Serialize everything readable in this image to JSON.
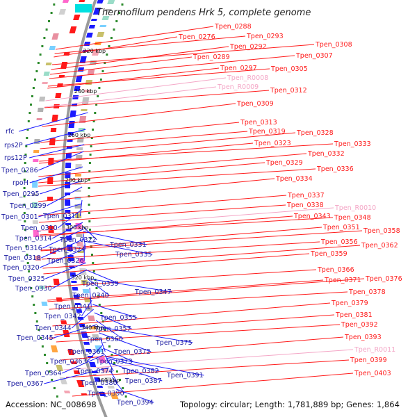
{
  "title": "Thermofilum pendens Hrk 5, complete genome",
  "footer": {
    "accession": "Accession: NC_008698",
    "summary": "Topology: circular; Length: 1,781,889 bp; Genes: 1,864"
  },
  "colors": {
    "backbone": "#9a9a9a",
    "plus_strand": "#ff1a1a",
    "minus_strand": "#1a1aff",
    "rna_label": "#f4a6c6",
    "ticks": "#2b8a2b"
  },
  "scale_marks": [
    "220 kbp",
    "240 kbp",
    "260 kbp",
    "280 kbp",
    "300 kbp",
    "320 kbp",
    "340 kbp",
    "360 kbp"
  ],
  "right_labels": [
    {
      "text": "Tpen_0288",
      "kind": "gene"
    },
    {
      "text": "Tpen_0276",
      "kind": "gene"
    },
    {
      "text": "Tpen_0293",
      "kind": "gene"
    },
    {
      "text": "Tpen_0292",
      "kind": "gene"
    },
    {
      "text": "Tpen_0308",
      "kind": "gene"
    },
    {
      "text": "Tpen_0289",
      "kind": "gene"
    },
    {
      "text": "Tpen_0307",
      "kind": "gene"
    },
    {
      "text": "Tpen_0297",
      "kind": "gene"
    },
    {
      "text": "Tpen_0305",
      "kind": "gene"
    },
    {
      "text": "Tpen_R0008",
      "kind": "rna"
    },
    {
      "text": "Tpen_R0009",
      "kind": "rna"
    },
    {
      "text": "Tpen_0312",
      "kind": "gene"
    },
    {
      "text": "Tpen_0309",
      "kind": "gene"
    },
    {
      "text": "Tpen_0313",
      "kind": "gene"
    },
    {
      "text": "Tpen_0319",
      "kind": "gene"
    },
    {
      "text": "Tpen_0328",
      "kind": "gene"
    },
    {
      "text": "Tpen_0323",
      "kind": "gene"
    },
    {
      "text": "Tpen_0333",
      "kind": "gene"
    },
    {
      "text": "Tpen_0332",
      "kind": "gene"
    },
    {
      "text": "Tpen_0329",
      "kind": "gene"
    },
    {
      "text": "Tpen_0336",
      "kind": "gene"
    },
    {
      "text": "Tpen_0334",
      "kind": "gene"
    },
    {
      "text": "Tpen_0337",
      "kind": "gene"
    },
    {
      "text": "Tpen_0338",
      "kind": "gene"
    },
    {
      "text": "Tpen_R0010",
      "kind": "rna"
    },
    {
      "text": "Tpen_0343",
      "kind": "gene"
    },
    {
      "text": "Tpen_0348",
      "kind": "gene"
    },
    {
      "text": "Tpen_0351",
      "kind": "gene"
    },
    {
      "text": "Tpen_0358",
      "kind": "gene"
    },
    {
      "text": "Tpen_0356",
      "kind": "gene"
    },
    {
      "text": "Tpen_0362",
      "kind": "gene"
    },
    {
      "text": "Tpen_0359",
      "kind": "gene"
    },
    {
      "text": "Tpen_0366",
      "kind": "gene"
    },
    {
      "text": "Tpen_0376",
      "kind": "gene"
    },
    {
      "text": "Tpen_0371",
      "kind": "gene"
    },
    {
      "text": "Tpen_0378",
      "kind": "gene"
    },
    {
      "text": "Tpen_0379",
      "kind": "gene"
    },
    {
      "text": "Tpen_0381",
      "kind": "gene"
    },
    {
      "text": "Tpen_0392",
      "kind": "gene"
    },
    {
      "text": "Tpen_0393",
      "kind": "gene"
    },
    {
      "text": "Tpen_R0011",
      "kind": "rna"
    },
    {
      "text": "Tpen_0399",
      "kind": "gene"
    },
    {
      "text": "Tpen_0403",
      "kind": "gene"
    }
  ],
  "left_labels": [
    {
      "text": "rfc"
    },
    {
      "text": "rps2P"
    },
    {
      "text": "rps12P"
    },
    {
      "text": "Tpen_0286"
    },
    {
      "text": "rpoH"
    },
    {
      "text": "Tpen_0295"
    },
    {
      "text": "Tpen_0299"
    },
    {
      "text": "Tpen_0311"
    },
    {
      "text": "Tpen_0301"
    },
    {
      "text": "Tpen_0310"
    },
    {
      "text": "Tpen_0314"
    },
    {
      "text": "Tpen_0322"
    },
    {
      "text": "Tpen_0316"
    },
    {
      "text": "Tpen_0324"
    },
    {
      "text": "Tpen_0331"
    },
    {
      "text": "Tpen_0318"
    },
    {
      "text": "Tpen_0326"
    },
    {
      "text": "Tpen_0335"
    },
    {
      "text": "Tpen_0320"
    },
    {
      "text": "Tpen_0325"
    },
    {
      "text": "Tpen_0339"
    },
    {
      "text": "Tpen_0330"
    },
    {
      "text": "Tpen_0340"
    },
    {
      "text": "Tpen_0347"
    },
    {
      "text": "Tpen_0341"
    },
    {
      "text": "Tpen_0342"
    },
    {
      "text": "Tpen_0355"
    },
    {
      "text": "Tpen_0344"
    },
    {
      "text": "Tpen_0357"
    },
    {
      "text": "Tpen_0345"
    },
    {
      "text": "Tpen_0360"
    },
    {
      "text": "Tpen_0375"
    },
    {
      "text": "Tpen_0361"
    },
    {
      "text": "Tpen_0372"
    },
    {
      "text": "Tpen_0363"
    },
    {
      "text": "Tpen_0373"
    },
    {
      "text": "Tpen_0364"
    },
    {
      "text": "Tpen_0374"
    },
    {
      "text": "Tpen_0382"
    },
    {
      "text": "Tpen_0391"
    },
    {
      "text": "Tpen_0367"
    },
    {
      "text": "Tpen_0380"
    },
    {
      "text": "Tpen_0387"
    },
    {
      "text": "Tpen_0390"
    },
    {
      "text": "Tpen_0394"
    }
  ]
}
